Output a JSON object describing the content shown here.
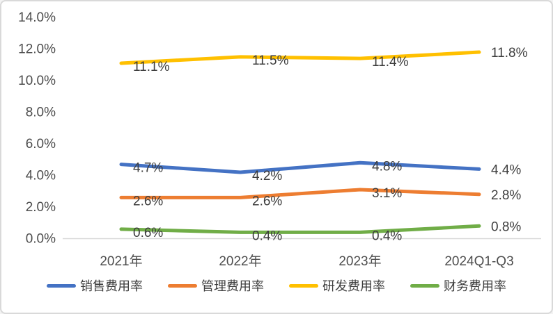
{
  "chart_data": {
    "type": "line",
    "categories": [
      "2021年",
      "2022年",
      "2023年",
      "2024Q1-Q3"
    ],
    "series": [
      {
        "key": "sales-expense-ratio",
        "name": "销售费用率",
        "color": "#4472C4",
        "values": [
          4.7,
          4.2,
          4.8,
          4.4
        ],
        "labels": [
          "4.7%",
          "4.2%",
          "4.8%",
          "4.4%"
        ]
      },
      {
        "key": "admin-expense-ratio",
        "name": "管理费用率",
        "color": "#ED7D31",
        "values": [
          2.6,
          2.6,
          3.1,
          2.8
        ],
        "labels": [
          "2.6%",
          "2.6%",
          "3.1%",
          "2.8%"
        ]
      },
      {
        "key": "rnd-expense-ratio",
        "name": "研发费用率",
        "color": "#FFC000",
        "values": [
          11.1,
          11.5,
          11.4,
          11.8
        ],
        "labels": [
          "11.1%",
          "11.5%",
          "11.4%",
          "11.8%"
        ]
      },
      {
        "key": "finance-expense-ratio",
        "name": "财务费用率",
        "color": "#70AD47",
        "values": [
          0.6,
          0.4,
          0.4,
          0.8
        ],
        "labels": [
          "0.6%",
          "0.4%",
          "0.4%",
          "0.8%"
        ]
      }
    ],
    "y_axis": {
      "tick_labels": [
        "14.0%",
        "12.0%",
        "10.0%",
        "8.0%",
        "6.0%",
        "4.0%",
        "2.0%",
        "0.0%"
      ],
      "tick_values": [
        14,
        12,
        10,
        8,
        6,
        4,
        2,
        0
      ],
      "min": 0,
      "max": 14,
      "unit": "%"
    },
    "title": "",
    "xlabel": "",
    "ylabel": "",
    "grid": "off",
    "legend_position": "bottom",
    "axis_line_color": "#d9d9d9",
    "label_text_color": "#3d3d3d"
  }
}
